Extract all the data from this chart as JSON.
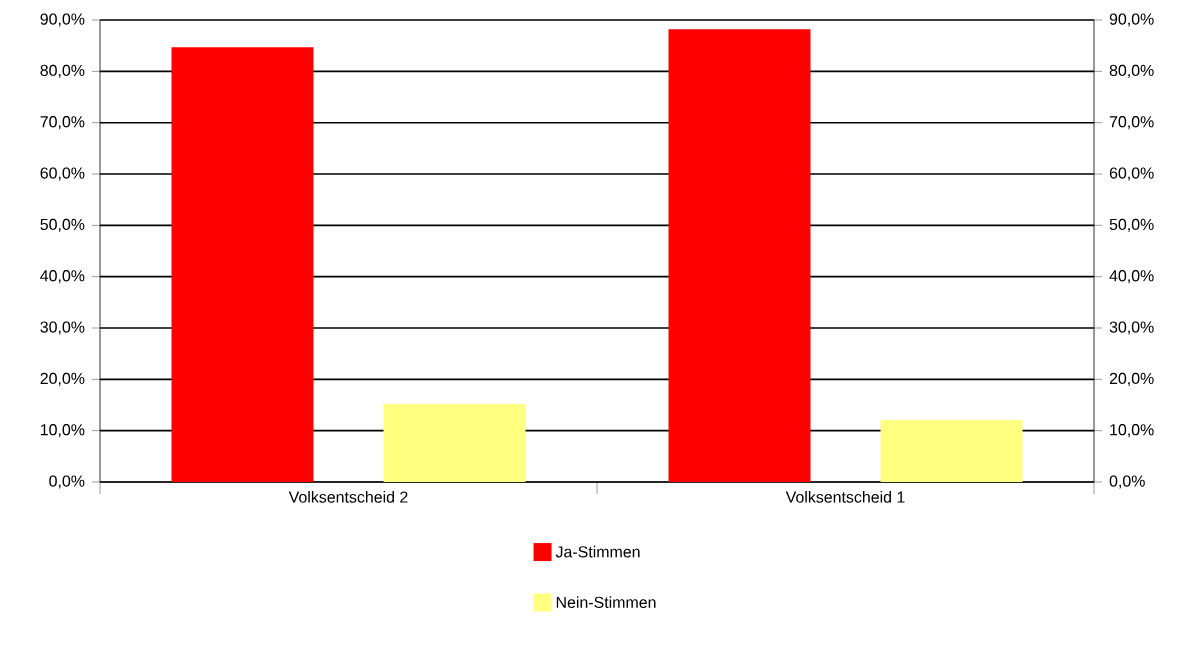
{
  "chart_data": {
    "type": "bar",
    "categories": [
      "Volksentscheid 2",
      "Volksentscheid 1"
    ],
    "series": [
      {
        "name": "Ja-Stimmen",
        "color": "#ff0000",
        "values": [
          84.7,
          88.2
        ]
      },
      {
        "name": "Nein-Stimmen",
        "color": "#ffff80",
        "values": [
          15.2,
          12.1
        ]
      }
    ],
    "ylim": [
      0,
      90
    ],
    "yticks": [
      {
        "value": 0,
        "label": "0,0%"
      },
      {
        "value": 10,
        "label": "10,0%"
      },
      {
        "value": 20,
        "label": "20,0%"
      },
      {
        "value": 30,
        "label": "30,0%"
      },
      {
        "value": 40,
        "label": "40,0%"
      },
      {
        "value": 50,
        "label": "50,0%"
      },
      {
        "value": 60,
        "label": "60,0%"
      },
      {
        "value": 70,
        "label": "70,0%"
      },
      {
        "value": 80,
        "label": "80,0%"
      },
      {
        "value": 90,
        "label": "90,0%"
      }
    ],
    "y2lim": [
      0,
      90
    ],
    "y2ticks": [
      {
        "value": 0,
        "label": "0,0%"
      },
      {
        "value": 10,
        "label": "10,0%"
      },
      {
        "value": 20,
        "label": "20,0%"
      },
      {
        "value": 30,
        "label": "30,0%"
      },
      {
        "value": 40,
        "label": "40,0%"
      },
      {
        "value": 50,
        "label": "50,0%"
      },
      {
        "value": 60,
        "label": "60,0%"
      },
      {
        "value": 70,
        "label": "70,0%"
      },
      {
        "value": 80,
        "label": "80,0%"
      },
      {
        "value": 90,
        "label": "90,0%"
      }
    ],
    "grid": "y",
    "legend": "bottom"
  }
}
